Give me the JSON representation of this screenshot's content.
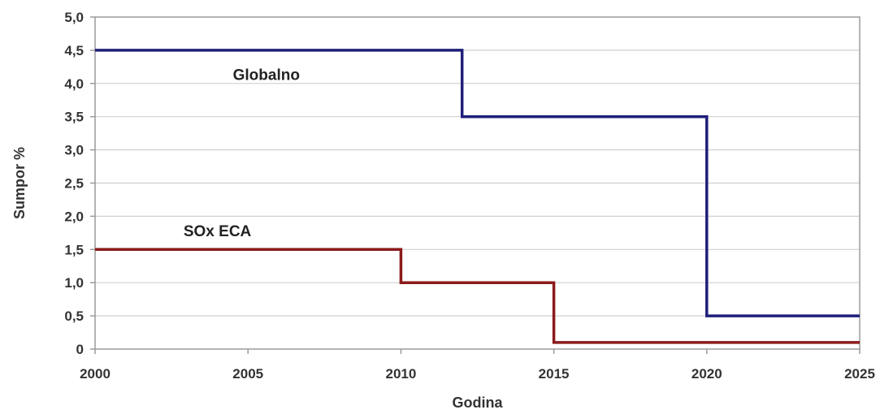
{
  "chart_data": {
    "type": "line",
    "step": true,
    "title": "",
    "xlabel": "Godina",
    "ylabel": "Sumpor %",
    "xlim": [
      2000,
      2025
    ],
    "ylim": [
      0,
      5
    ],
    "xticks": [
      2000,
      2005,
      2010,
      2015,
      2020,
      2025
    ],
    "xtick_labels": [
      "2000",
      "2005",
      "2010",
      "2015",
      "2020",
      "2025"
    ],
    "yticks": [
      0,
      0.5,
      1,
      1.5,
      2,
      2.5,
      3,
      3.5,
      4,
      4.5,
      5
    ],
    "ytick_labels": [
      "0",
      "0,5",
      "1,0",
      "1,5",
      "2,0",
      "2,5",
      "3,0",
      "3,5",
      "4,0",
      "4,5",
      "5,0"
    ],
    "grid": true,
    "series": [
      {
        "name": "Globalno",
        "color": "#1f1f7a",
        "points": [
          [
            2000,
            4.5
          ],
          [
            2012,
            4.5
          ],
          [
            2012,
            3.5
          ],
          [
            2020,
            3.5
          ],
          [
            2020,
            0.5
          ],
          [
            2025,
            0.5
          ]
        ],
        "label_anchor": [
          2005.6,
          4.05
        ]
      },
      {
        "name": "SOx ECA",
        "color": "#8b1a1a",
        "points": [
          [
            2000,
            1.5
          ],
          [
            2010,
            1.5
          ],
          [
            2010,
            1.0
          ],
          [
            2015,
            1.0
          ],
          [
            2015,
            0.1
          ],
          [
            2025,
            0.1
          ]
        ],
        "label_anchor": [
          2004,
          1.7
        ]
      }
    ]
  }
}
